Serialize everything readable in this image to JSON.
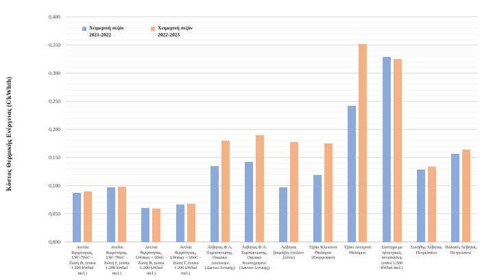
{
  "chart_data": {
    "type": "bar",
    "title": "",
    "xlabel": "",
    "ylabel": "Κόστος Θερμικής Ενέργειας (€/kWhth)",
    "ylim": [
      0,
      0.4
    ],
    "ytick_step": 0.05,
    "minor_grid_step": 0.01,
    "ytick_labels": [
      "0,000",
      "0,050",
      "0,100",
      "0,150",
      "0,200",
      "0,250",
      "0,300",
      "0,350",
      "0,400"
    ],
    "grid": "horizontal major and faint minor gridlines",
    "legend_position": "top-left inside plot",
    "categories": [
      "Αντλία θερμότητας, LW>70oC - Ζώνη Β, (extra 1.200 kWhel incl.)",
      "Αντλία θερμότητας, LW>70oC - Ζώνη Γ, (extra 1.200 kWhel incl.)",
      "Αντλία θερμότητας, LWmax = 60oC - Ζώνη Β, (extra 1.200 kWhel incl.)",
      "Αντλία θερμότητας, LWmax = 60oC - Ζώνη Γ, (extra 1.200 kWhel incl.)",
      "Λέβητας Φ.Α. Συμπύκνωσης, Οικιακό Αυτόνομο (Δίκτυο Αττικής)",
      "Λέβητας Φ.Α. Συμπύκνωσης, Οικιακό Κοινόχρηστο (Δίκτυο Αττικής)",
      "Λέβητας βιομάζας (πέλλετ ξύλου)",
      "Τζάκι Κλειστού Θαλάμου (Ενεργειακό)",
      "Τζάκι Ανοιχτού Θαλάμου",
      "Σύστημα με ηλεκτρικές αντιστάσεις (extra 1.200 kWhel incl.)",
      "Συνήθης Λέβητας Πετρελαίου",
      "Παλαιός Λέβητας Πετρελαίου"
    ],
    "series": [
      {
        "name": "Χειμερινή σεζόν 2021-2022",
        "color": "#8EAADB",
        "values": [
          0.088,
          0.097,
          0.061,
          0.067,
          0.135,
          0.143,
          0.097,
          0.12,
          0.243,
          0.329,
          0.129,
          0.157
        ]
      },
      {
        "name": "Χειμερινή σεζόν 2022-2023",
        "color": "#F4B183",
        "values": [
          0.09,
          0.099,
          0.06,
          0.068,
          0.18,
          0.19,
          0.178,
          0.176,
          0.353,
          0.326,
          0.134,
          0.165
        ]
      }
    ]
  }
}
